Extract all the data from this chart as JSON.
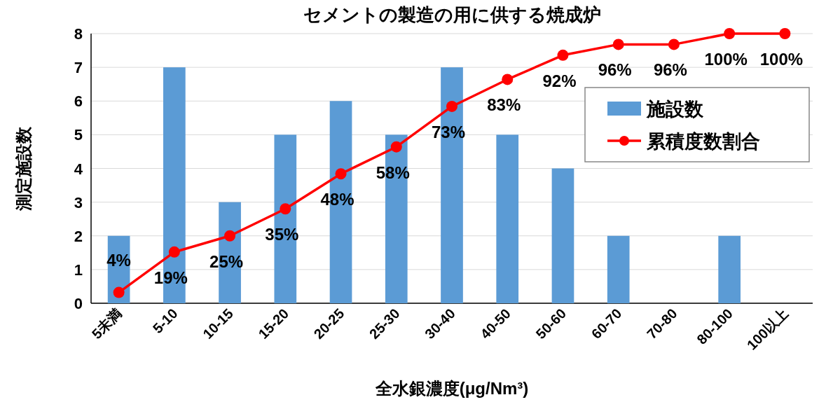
{
  "chart_data": {
    "type": "bar",
    "title": "セメントの製造の用に供する焼成炉",
    "xlabel": "全水銀濃度(μg/Nm³)",
    "ylabel": "測定施設数",
    "categories": [
      "5未満",
      "5-10",
      "10-15",
      "15-20",
      "20-25",
      "25-30",
      "30-40",
      "40-50",
      "50-60",
      "60-70",
      "70-80",
      "80-100",
      "100以上"
    ],
    "series": [
      {
        "name": "施設数",
        "color": "#5b9bd5",
        "values": [
          2,
          7,
          3,
          5,
          6,
          5,
          7,
          5,
          4,
          2,
          0,
          2,
          0
        ]
      },
      {
        "name": "累積度数割合",
        "type": "line",
        "axis": "y2",
        "color": "#ff0000",
        "marker": "circle",
        "values": [
          4,
          19,
          25,
          35,
          48,
          58,
          73,
          83,
          92,
          96,
          96,
          100,
          100
        ],
        "value_labels": [
          "4%",
          "19%",
          "25%",
          "35%",
          "48%",
          "58%",
          "73%",
          "83%",
          "92%",
          "96%",
          "96%",
          "100%",
          "100%"
        ]
      }
    ],
    "ylim": [
      0,
      8
    ],
    "yticks": [
      0,
      1,
      2,
      3,
      4,
      5,
      6,
      7,
      8
    ],
    "y2lim": [
      0,
      100
    ],
    "grid": "y",
    "legend": "right"
  }
}
